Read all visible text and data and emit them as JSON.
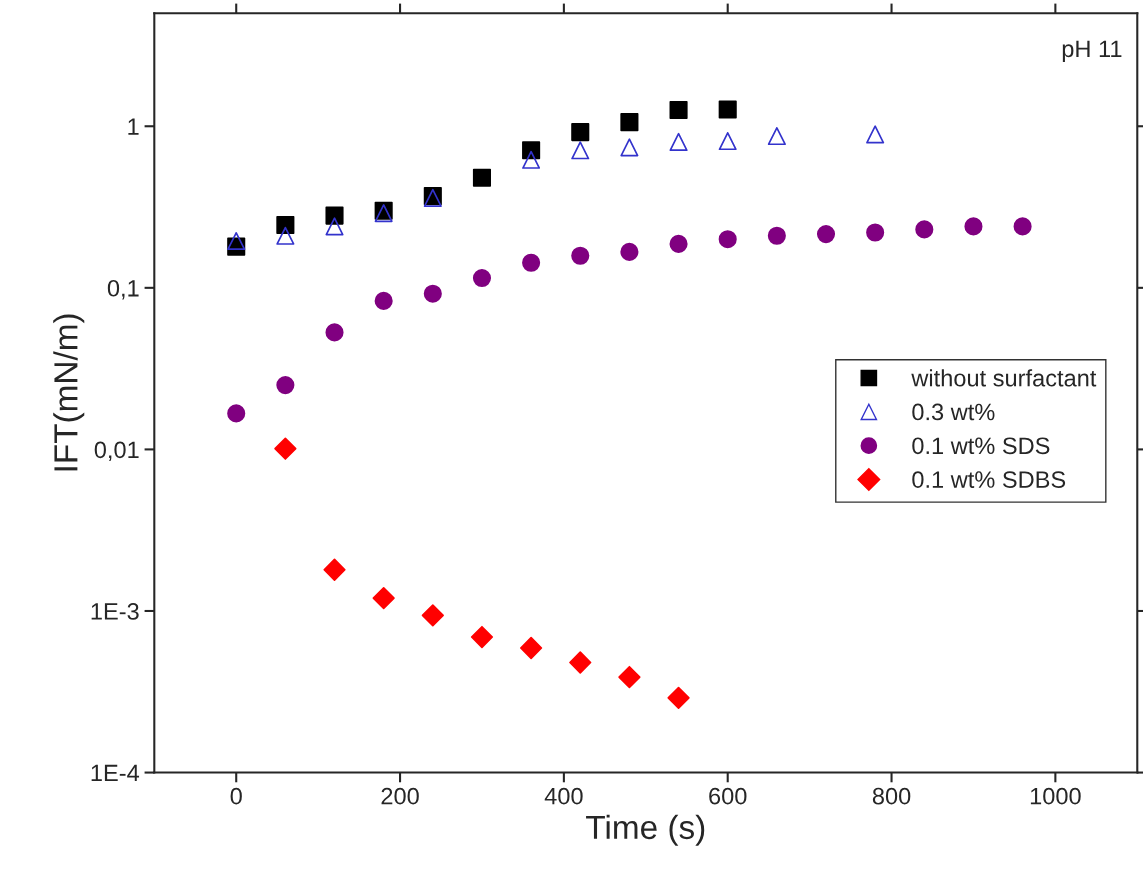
{
  "chart_data": {
    "type": "scatter",
    "xlabel": "Time (s)",
    "ylabel": "IFT(mN/m)",
    "log": "y",
    "xlim": [
      -100,
      1100
    ],
    "xticks": [
      0,
      200,
      400,
      600,
      800,
      1000
    ],
    "ylim": [
      0.0001,
      5
    ],
    "yticks": [
      {
        "value": 0.0001,
        "label": "1E-4"
      },
      {
        "value": 0.001,
        "label": "1E-3"
      },
      {
        "value": 0.01,
        "label": "0,01"
      },
      {
        "value": 0.1,
        "label": "0,1"
      },
      {
        "value": 1,
        "label": "1"
      }
    ],
    "legend": "right",
    "grid": false,
    "annotations": [
      "pH 11"
    ],
    "series": [
      {
        "name": "without surfactant",
        "color": "#000000",
        "marker": "square",
        "x": [
          0,
          60,
          120,
          180,
          240,
          300,
          360,
          420,
          480,
          540,
          600
        ],
        "values": [
          0.18,
          0.245,
          0.28,
          0.3,
          0.37,
          0.48,
          0.71,
          0.92,
          1.06,
          1.26,
          1.27
        ]
      },
      {
        "name": "0.3 wt%",
        "color": "#3333cc",
        "marker": "triangle",
        "x": [
          0,
          60,
          120,
          180,
          240,
          360,
          420,
          480,
          540,
          600,
          660,
          780
        ],
        "values": [
          0.195,
          0.21,
          0.24,
          0.29,
          0.36,
          0.62,
          0.71,
          0.74,
          0.8,
          0.81,
          0.87,
          0.89
        ]
      },
      {
        "name": "0.1 wt% SDS",
        "color": "#800080",
        "marker": "circle",
        "x": [
          0,
          60,
          120,
          180,
          240,
          300,
          360,
          420,
          480,
          540,
          600,
          660,
          720,
          780,
          840,
          900,
          960
        ],
        "values": [
          0.0167,
          0.025,
          0.053,
          0.083,
          0.092,
          0.115,
          0.143,
          0.158,
          0.167,
          0.187,
          0.2,
          0.21,
          0.215,
          0.22,
          0.23,
          0.24,
          0.24
        ]
      },
      {
        "name": "0.1 wt% SDBS",
        "color": "#ff0000",
        "marker": "diamond",
        "x": [
          60,
          120,
          180,
          240,
          300,
          360,
          420,
          480,
          540
        ],
        "values": [
          0.0101,
          0.0018,
          0.0012,
          0.00094,
          0.00069,
          0.00059,
          0.00048,
          0.00039,
          0.00029
        ]
      }
    ]
  }
}
